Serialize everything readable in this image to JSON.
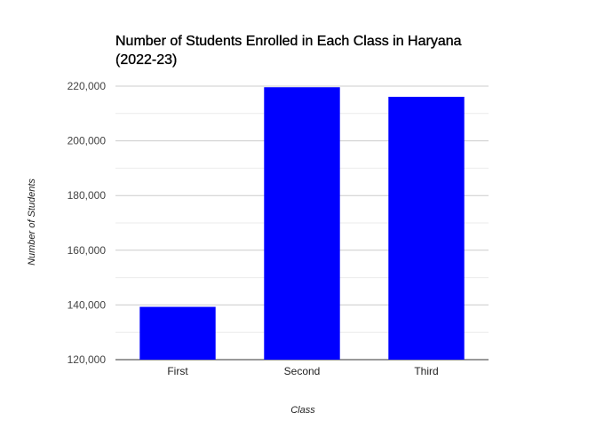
{
  "chart_data": {
    "type": "bar",
    "title": "Number of Students Enrolled in Each Class in Haryana (2022-23)",
    "xlabel": "Class",
    "ylabel": "Number of Students",
    "categories": [
      "First",
      "Second",
      "Third"
    ],
    "values": [
      139300,
      219600,
      216100
    ],
    "ylim": [
      120000,
      220000
    ],
    "yticks": [
      "120,000",
      "140,000",
      "160,000",
      "180,000",
      "200,000",
      "220,000"
    ],
    "grid": true,
    "legend": "none",
    "bar_color": "#0000ff",
    "gridline_color": "#cccccc",
    "minor_gridline_color": "#ebebeb"
  }
}
